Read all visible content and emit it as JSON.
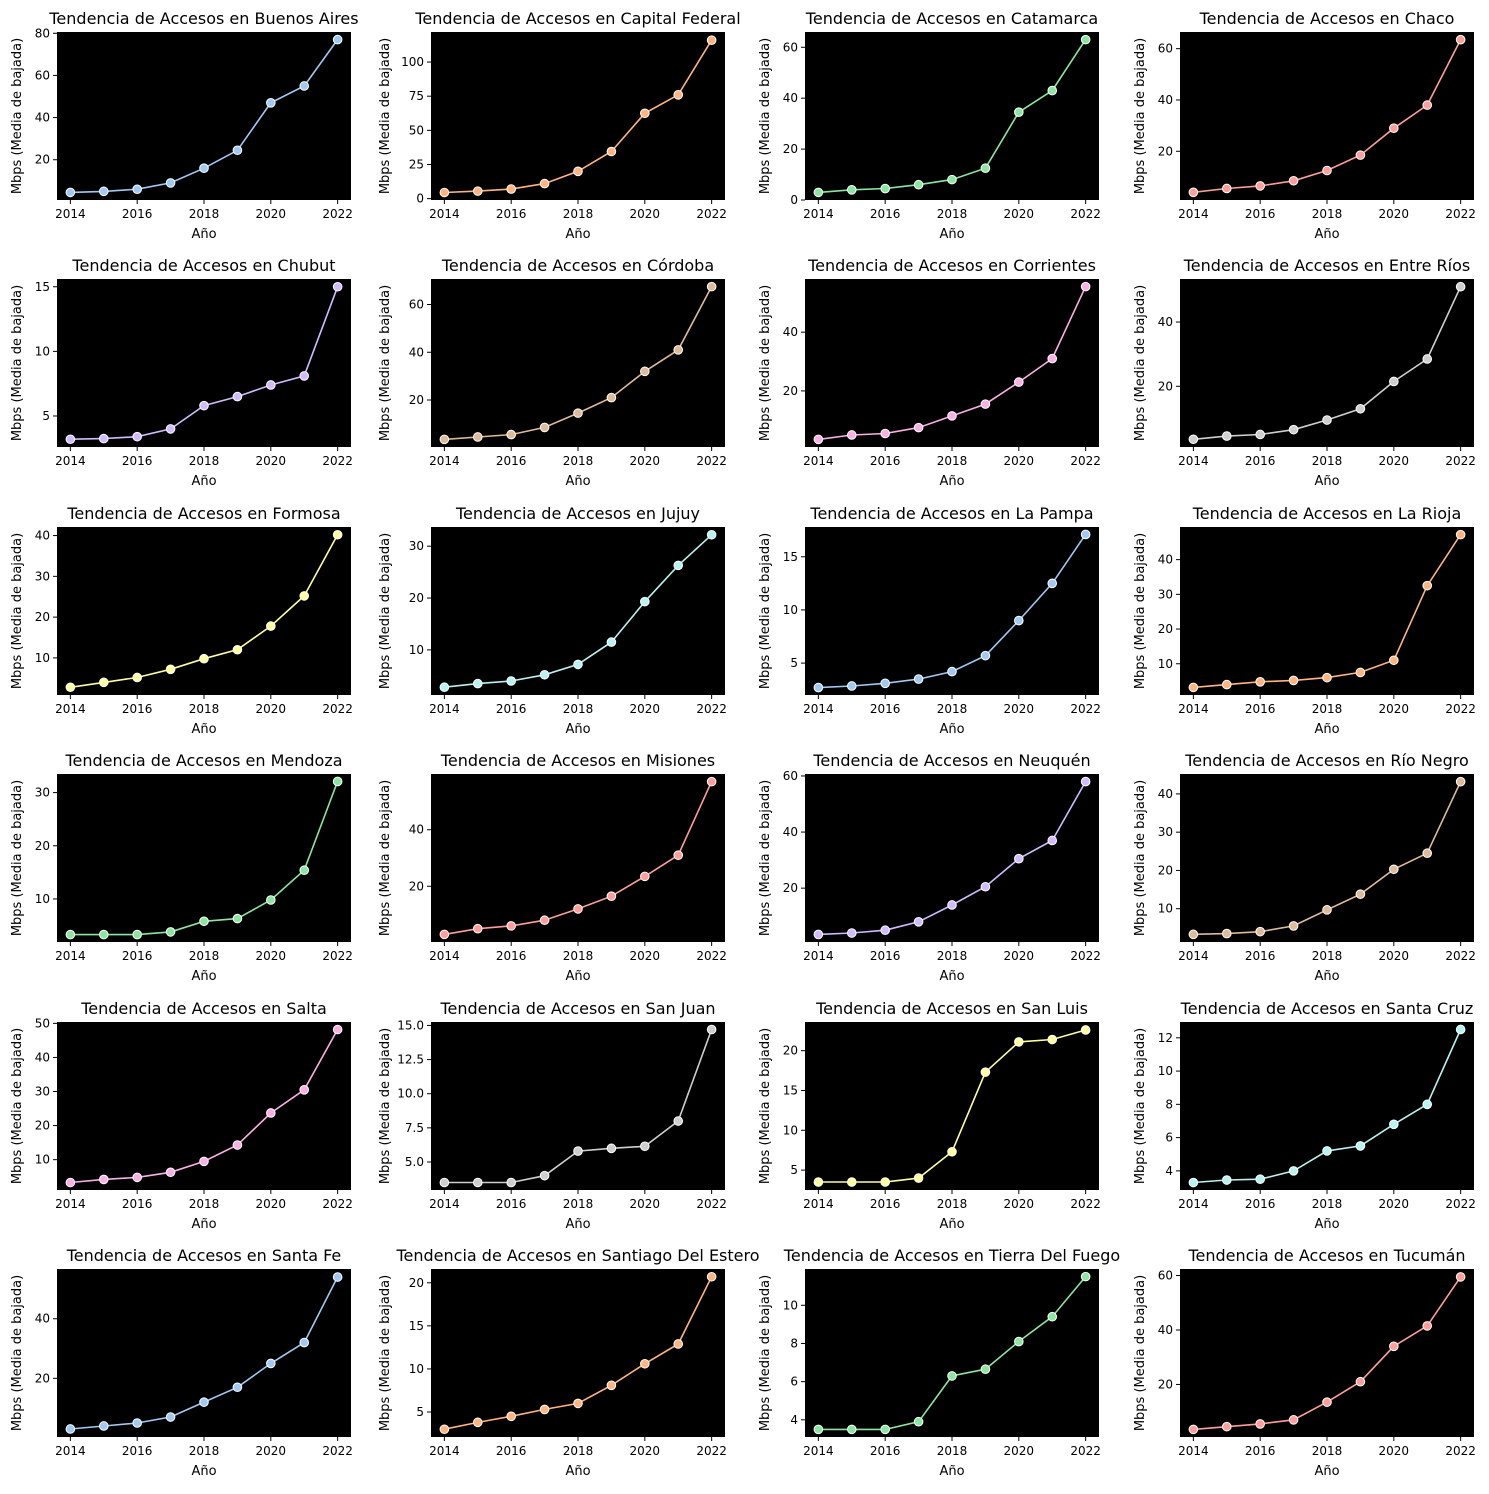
{
  "figure": {
    "x_ticks": [
      2014,
      2016,
      2018,
      2020,
      2022
    ],
    "line_colors": [
      "#a1c9f4",
      "#ffb482",
      "#8de5a1",
      "#ff9f9b",
      "#d0bbff",
      "#debb9b",
      "#fab0e4",
      "#cfcfcf",
      "#fffea3",
      "#b9f2f0"
    ],
    "plot_background": "#000000",
    "marker_edge": "#ffffff"
  },
  "chart_data": [
    {
      "type": "line",
      "title": "Tendencia de Accesos en Buenos Aires",
      "xlabel": "Año",
      "ylabel": "Mbps (Media de bajada)",
      "color": "#a1c9f4",
      "x": [
        2014,
        2015,
        2016,
        2017,
        2018,
        2019,
        2020,
        2021,
        2022
      ],
      "y": [
        4.5,
        5,
        6,
        9,
        16,
        24.5,
        47,
        55,
        77
      ],
      "yticks": [
        20,
        40,
        60,
        80
      ],
      "ylim": [
        0.9,
        80.6
      ],
      "xlim": [
        2013.6,
        2022.4
      ],
      "grid": false
    },
    {
      "type": "line",
      "title": "Tendencia de Accesos en Capital Federal",
      "xlabel": "Año",
      "ylabel": "Mbps (Media de bajada)",
      "color": "#ffb482",
      "x": [
        2014,
        2015,
        2016,
        2017,
        2018,
        2019,
        2020,
        2021,
        2022
      ],
      "y": [
        4.5,
        5.5,
        7,
        11,
        20,
        34.5,
        62.5,
        76,
        116
      ],
      "yticks": [
        0,
        25,
        50,
        75,
        100
      ],
      "ylim": [
        -1,
        122
      ],
      "xlim": [
        2013.6,
        2022.4
      ],
      "grid": false
    },
    {
      "type": "line",
      "title": "Tendencia de Accesos en Catamarca",
      "xlabel": "Año",
      "ylabel": "Mbps (Media de bajada)",
      "color": "#8de5a1",
      "x": [
        2014,
        2015,
        2016,
        2017,
        2018,
        2019,
        2020,
        2021,
        2022
      ],
      "y": [
        3,
        4,
        4.5,
        6,
        8,
        12.5,
        34.5,
        43,
        63
      ],
      "yticks": [
        0,
        20,
        40,
        60
      ],
      "ylim": [
        0,
        66
      ],
      "xlim": [
        2013.6,
        2022.4
      ],
      "grid": false
    },
    {
      "type": "line",
      "title": "Tendencia de Accesos en Chaco",
      "xlabel": "Año",
      "ylabel": "Mbps (Media de bajada)",
      "color": "#ff9f9b",
      "x": [
        2014,
        2015,
        2016,
        2017,
        2018,
        2019,
        2020,
        2021,
        2022
      ],
      "y": [
        4,
        5.5,
        6.5,
        8.5,
        12.5,
        18.5,
        29,
        38,
        63.5
      ],
      "yticks": [
        20,
        40,
        60
      ],
      "ylim": [
        1,
        66.5
      ],
      "xlim": [
        2013.6,
        2022.4
      ],
      "grid": false
    },
    {
      "type": "line",
      "title": "Tendencia de Accesos en Chubut",
      "xlabel": "Año",
      "ylabel": "Mbps (Media de bajada)",
      "color": "#d0bbff",
      "x": [
        2014,
        2015,
        2016,
        2017,
        2018,
        2019,
        2020,
        2021,
        2022
      ],
      "y": [
        3.2,
        3.25,
        3.4,
        4,
        5.8,
        6.5,
        7.4,
        8.1,
        15
      ],
      "yticks": [
        5,
        10,
        15
      ],
      "ylim": [
        2.6,
        15.6
      ],
      "xlim": [
        2013.6,
        2022.4
      ],
      "grid": false
    },
    {
      "type": "line",
      "title": "Tendencia de Accesos en Córdoba",
      "xlabel": "Año",
      "ylabel": "Mbps (Media de bajada)",
      "color": "#debb9b",
      "x": [
        2014,
        2015,
        2016,
        2017,
        2018,
        2019,
        2020,
        2021,
        2022
      ],
      "y": [
        3.5,
        4.5,
        5.5,
        8.5,
        14.5,
        21,
        32,
        41,
        67.5
      ],
      "yticks": [
        20,
        40,
        60
      ],
      "ylim": [
        0.3,
        70.7
      ],
      "xlim": [
        2013.6,
        2022.4
      ],
      "grid": false
    },
    {
      "type": "line",
      "title": "Tendencia de Accesos en Corrientes",
      "xlabel": "Año",
      "ylabel": "Mbps (Media de bajada)",
      "color": "#fab0e4",
      "x": [
        2014,
        2015,
        2016,
        2017,
        2018,
        2019,
        2020,
        2021,
        2022
      ],
      "y": [
        3.5,
        5,
        5.5,
        7.5,
        11.5,
        15.5,
        23,
        31,
        55.5
      ],
      "yticks": [
        20,
        40
      ],
      "ylim": [
        0.9,
        58.1
      ],
      "xlim": [
        2013.6,
        2022.4
      ],
      "grid": false
    },
    {
      "type": "line",
      "title": "Tendencia de Accesos en Entre Ríos",
      "xlabel": "Año",
      "ylabel": "Mbps (Media de bajada)",
      "color": "#cfcfcf",
      "x": [
        2014,
        2015,
        2016,
        2017,
        2018,
        2019,
        2020,
        2021,
        2022
      ],
      "y": [
        3.5,
        4.5,
        5,
        6.5,
        9.5,
        13,
        21.5,
        28.5,
        51
      ],
      "yticks": [
        20,
        40
      ],
      "ylim": [
        1.1,
        53.4
      ],
      "xlim": [
        2013.6,
        2022.4
      ],
      "grid": false
    },
    {
      "type": "line",
      "title": "Tendencia de Accesos en Formosa",
      "xlabel": "Año",
      "ylabel": "Mbps (Media de bajada)",
      "color": "#fffea3",
      "x": [
        2014,
        2015,
        2016,
        2017,
        2018,
        2019,
        2020,
        2021,
        2022
      ],
      "y": [
        2.8,
        4,
        5.2,
        7.2,
        9.8,
        12,
        17.8,
        25.2,
        40.2
      ],
      "yticks": [
        10,
        20,
        30,
        40
      ],
      "ylim": [
        0.9,
        42.1
      ],
      "xlim": [
        2013.6,
        2022.4
      ],
      "grid": false
    },
    {
      "type": "line",
      "title": "Tendencia de Accesos en Jujuy",
      "xlabel": "Año",
      "ylabel": "Mbps (Media de bajada)",
      "color": "#b9f2f0",
      "x": [
        2014,
        2015,
        2016,
        2017,
        2018,
        2019,
        2020,
        2021,
        2022
      ],
      "y": [
        2.8,
        3.5,
        4,
        5.2,
        7.2,
        11.5,
        19.3,
        26.3,
        32.2
      ],
      "yticks": [
        10,
        20,
        30
      ],
      "ylim": [
        1.3,
        33.7
      ],
      "xlim": [
        2013.6,
        2022.4
      ],
      "grid": false
    },
    {
      "type": "line",
      "title": "Tendencia de Accesos en La Pampa",
      "xlabel": "Año",
      "ylabel": "Mbps (Media de bajada)",
      "color": "#a1c9f4",
      "x": [
        2014,
        2015,
        2016,
        2017,
        2018,
        2019,
        2020,
        2021,
        2022
      ],
      "y": [
        2.7,
        2.85,
        3.1,
        3.5,
        4.2,
        5.7,
        9,
        12.5,
        17.1
      ],
      "yticks": [
        5,
        10,
        15
      ],
      "ylim": [
        2.0,
        17.8
      ],
      "xlim": [
        2013.6,
        2022.4
      ],
      "grid": false
    },
    {
      "type": "line",
      "title": "Tendencia de Accesos en La Rioja",
      "xlabel": "Año",
      "ylabel": "Mbps (Media de bajada)",
      "color": "#ffb482",
      "x": [
        2014,
        2015,
        2016,
        2017,
        2018,
        2019,
        2020,
        2021,
        2022
      ],
      "y": [
        3.2,
        4,
        4.8,
        5.2,
        6,
        7.5,
        11,
        32.5,
        47.2
      ],
      "yticks": [
        10,
        20,
        30,
        40
      ],
      "ylim": [
        1.0,
        49.4
      ],
      "xlim": [
        2013.6,
        2022.4
      ],
      "grid": false
    },
    {
      "type": "line",
      "title": "Tendencia de Accesos en Mendoza",
      "xlabel": "Año",
      "ylabel": "Mbps (Media de bajada)",
      "color": "#8de5a1",
      "x": [
        2014,
        2015,
        2016,
        2017,
        2018,
        2019,
        2020,
        2021,
        2022
      ],
      "y": [
        3.3,
        3.3,
        3.3,
        3.8,
        5.8,
        6.3,
        9.8,
        15.4,
        32.1
      ],
      "yticks": [
        10,
        20,
        30
      ],
      "ylim": [
        1.9,
        33.5
      ],
      "xlim": [
        2013.6,
        2022.4
      ],
      "grid": false
    },
    {
      "type": "line",
      "title": "Tendencia de Accesos en Misiones",
      "xlabel": "Año",
      "ylabel": "Mbps (Media de bajada)",
      "color": "#ff9f9b",
      "x": [
        2014,
        2015,
        2016,
        2017,
        2018,
        2019,
        2020,
        2021,
        2022
      ],
      "y": [
        3,
        5,
        6,
        8,
        12,
        16.5,
        23.5,
        31,
        57
      ],
      "yticks": [
        20,
        40
      ],
      "ylim": [
        0.3,
        59.7
      ],
      "xlim": [
        2013.6,
        2022.4
      ],
      "grid": false
    },
    {
      "type": "line",
      "title": "Tendencia de Accesos en Neuquén",
      "xlabel": "Año",
      "ylabel": "Mbps (Media de bajada)",
      "color": "#d0bbff",
      "x": [
        2014,
        2015,
        2016,
        2017,
        2018,
        2019,
        2020,
        2021,
        2022
      ],
      "y": [
        3.5,
        4,
        5,
        8,
        14,
        20.5,
        30.5,
        37,
        58
      ],
      "yticks": [
        20,
        40,
        60
      ],
      "ylim": [
        0.8,
        60.7
      ],
      "xlim": [
        2013.6,
        2022.4
      ],
      "grid": false
    },
    {
      "type": "line",
      "title": "Tendencia de Accesos en Río Negro",
      "xlabel": "Año",
      "ylabel": "Mbps (Media de bajada)",
      "color": "#debb9b",
      "x": [
        2014,
        2015,
        2016,
        2017,
        2018,
        2019,
        2020,
        2021,
        2022
      ],
      "y": [
        3.3,
        3.5,
        4,
        5.5,
        9.7,
        13.8,
        20.3,
        24.5,
        43.2
      ],
      "yticks": [
        10,
        20,
        30,
        40
      ],
      "ylim": [
        1.3,
        45.2
      ],
      "xlim": [
        2013.6,
        2022.4
      ],
      "grid": false
    },
    {
      "type": "line",
      "title": "Tendencia de Accesos en Salta",
      "xlabel": "Año",
      "ylabel": "Mbps (Media de bajada)",
      "color": "#fab0e4",
      "x": [
        2014,
        2015,
        2016,
        2017,
        2018,
        2019,
        2020,
        2021,
        2022
      ],
      "y": [
        3.3,
        4.2,
        4.8,
        6.3,
        9.5,
        14.3,
        23.7,
        30.5,
        48.2
      ],
      "yticks": [
        10,
        20,
        30,
        40,
        50
      ],
      "ylim": [
        1.1,
        50.4
      ],
      "xlim": [
        2013.6,
        2022.4
      ],
      "grid": false
    },
    {
      "type": "line",
      "title": "Tendencia de Accesos en San Juan",
      "xlabel": "Año",
      "ylabel": "Mbps (Media de bajada)",
      "color": "#cfcfcf",
      "x": [
        2014,
        2015,
        2016,
        2017,
        2018,
        2019,
        2020,
        2021,
        2022
      ],
      "y": [
        3.5,
        3.5,
        3.5,
        4,
        5.8,
        6,
        6.15,
        8,
        14.7
      ],
      "yticks": [
        5.0,
        7.5,
        10.0,
        12.5,
        15.0
      ],
      "ylim": [
        2.95,
        15.25
      ],
      "xlim": [
        2013.6,
        2022.4
      ],
      "grid": false
    },
    {
      "type": "line",
      "title": "Tendencia de Accesos en San Luis",
      "xlabel": "Año",
      "ylabel": "Mbps (Media de bajada)",
      "color": "#fffea3",
      "x": [
        2014,
        2015,
        2016,
        2017,
        2018,
        2019,
        2020,
        2021,
        2022
      ],
      "y": [
        3.5,
        3.5,
        3.5,
        4,
        7.3,
        17.3,
        21.1,
        21.4,
        22.6
      ],
      "yticks": [
        5,
        10,
        15,
        20
      ],
      "ylim": [
        2.5,
        23.6
      ],
      "xlim": [
        2013.6,
        2022.4
      ],
      "grid": false
    },
    {
      "type": "line",
      "title": "Tendencia de Accesos en Santa Cruz",
      "xlabel": "Año",
      "ylabel": "Mbps (Media de bajada)",
      "color": "#b9f2f0",
      "x": [
        2014,
        2015,
        2016,
        2017,
        2018,
        2019,
        2020,
        2021,
        2022
      ],
      "y": [
        3.3,
        3.45,
        3.5,
        4,
        5.2,
        5.5,
        6.8,
        8,
        12.5
      ],
      "yticks": [
        4,
        6,
        8,
        10,
        12
      ],
      "ylim": [
        2.85,
        12.95
      ],
      "xlim": [
        2013.6,
        2022.4
      ],
      "grid": false
    },
    {
      "type": "line",
      "title": "Tendencia de Accesos en Santa Fe",
      "xlabel": "Año",
      "ylabel": "Mbps (Media de bajada)",
      "color": "#a1c9f4",
      "x": [
        2014,
        2015,
        2016,
        2017,
        2018,
        2019,
        2020,
        2021,
        2022
      ],
      "y": [
        3,
        4,
        5,
        7,
        12,
        17,
        25,
        32,
        54
      ],
      "yticks": [
        20,
        40
      ],
      "ylim": [
        0.3,
        56.7
      ],
      "xlim": [
        2013.6,
        2022.4
      ],
      "grid": false
    },
    {
      "type": "line",
      "title": "Tendencia de Accesos en Santiago Del Estero",
      "xlabel": "Año",
      "ylabel": "Mbps (Media de bajada)",
      "color": "#ffb482",
      "x": [
        2014,
        2015,
        2016,
        2017,
        2018,
        2019,
        2020,
        2021,
        2022
      ],
      "y": [
        3,
        3.8,
        4.5,
        5.3,
        6,
        8.1,
        10.6,
        12.9,
        20.7
      ],
      "yticks": [
        5,
        10,
        15,
        20
      ],
      "ylim": [
        2.1,
        21.6
      ],
      "xlim": [
        2013.6,
        2022.4
      ],
      "grid": false
    },
    {
      "type": "line",
      "title": "Tendencia de Accesos en Tierra Del Fuego",
      "xlabel": "Año",
      "ylabel": "Mbps (Media de bajada)",
      "color": "#8de5a1",
      "x": [
        2014,
        2015,
        2016,
        2017,
        2018,
        2019,
        2020,
        2021,
        2022
      ],
      "y": [
        3.5,
        3.5,
        3.5,
        3.9,
        6.3,
        6.65,
        8.1,
        9.4,
        11.5
      ],
      "yticks": [
        4,
        6,
        8,
        10
      ],
      "ylim": [
        3.1,
        11.9
      ],
      "xlim": [
        2013.6,
        2022.4
      ],
      "grid": false
    },
    {
      "type": "line",
      "title": "Tendencia de Accesos en Tucumán",
      "xlabel": "Año",
      "ylabel": "Mbps (Media de bajada)",
      "color": "#ff9f9b",
      "x": [
        2014,
        2015,
        2016,
        2017,
        2018,
        2019,
        2020,
        2021,
        2022
      ],
      "y": [
        3.5,
        4.5,
        5.5,
        7,
        13.5,
        21,
        34,
        41.5,
        59.5
      ],
      "yticks": [
        20,
        40,
        60
      ],
      "ylim": [
        0.7,
        62.4
      ],
      "xlim": [
        2013.6,
        2022.4
      ],
      "grid": false
    }
  ]
}
